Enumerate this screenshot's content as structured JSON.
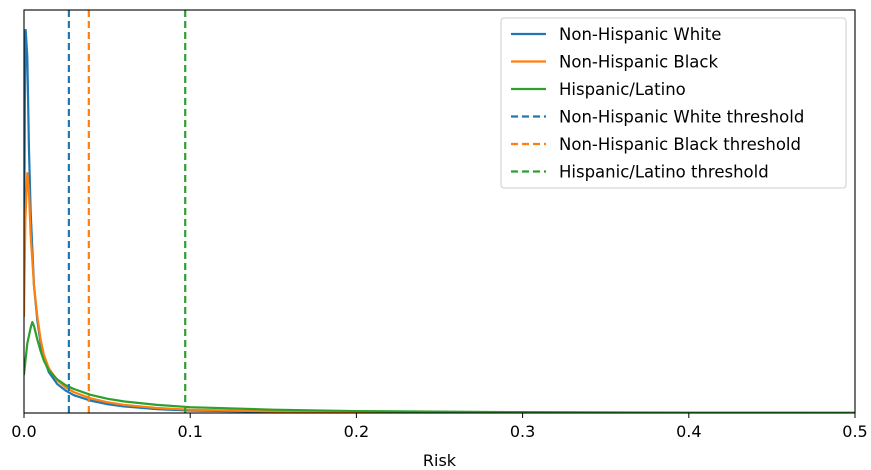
{
  "chart_data": {
    "type": "line",
    "title": "",
    "xlabel": "Risk",
    "ylabel": "",
    "xlim": [
      0,
      0.5
    ],
    "ylim": [
      0,
      1
    ],
    "grid": false,
    "legend_position": "top-right",
    "x_ticks": [
      {
        "value": 0.0,
        "label": "0.0"
      },
      {
        "value": 0.1,
        "label": "0.1"
      },
      {
        "value": 0.2,
        "label": "0.2"
      },
      {
        "value": 0.3,
        "label": "0.3"
      },
      {
        "value": 0.4,
        "label": "0.4"
      },
      {
        "value": 0.5,
        "label": "0.5"
      }
    ],
    "series": [
      {
        "name": "Non-Hispanic White",
        "color": "#1f77b4",
        "style": "solid",
        "points": [
          [
            0,
            0.3
          ],
          [
            0.0005,
            0.8
          ],
          [
            0.001,
            0.99
          ],
          [
            0.002,
            0.92
          ],
          [
            0.003,
            0.68
          ],
          [
            0.004,
            0.52
          ],
          [
            0.006,
            0.33
          ],
          [
            0.008,
            0.24
          ],
          [
            0.01,
            0.18
          ],
          [
            0.012,
            0.14
          ],
          [
            0.015,
            0.105
          ],
          [
            0.02,
            0.075
          ],
          [
            0.025,
            0.058
          ],
          [
            0.03,
            0.046
          ],
          [
            0.04,
            0.032
          ],
          [
            0.05,
            0.023
          ],
          [
            0.06,
            0.017
          ],
          [
            0.08,
            0.01
          ],
          [
            0.1,
            0.0065
          ],
          [
            0.15,
            0.003
          ],
          [
            0.2,
            0.0015
          ],
          [
            0.3,
            0.0005
          ],
          [
            0.5,
            0.0001
          ]
        ]
      },
      {
        "name": "Non-Hispanic Black",
        "color": "#ff7f0e",
        "style": "solid",
        "points": [
          [
            0,
            0.25
          ],
          [
            0.0008,
            0.5
          ],
          [
            0.002,
            0.62
          ],
          [
            0.003,
            0.57
          ],
          [
            0.004,
            0.46
          ],
          [
            0.006,
            0.33
          ],
          [
            0.008,
            0.25
          ],
          [
            0.01,
            0.19
          ],
          [
            0.012,
            0.15
          ],
          [
            0.015,
            0.115
          ],
          [
            0.02,
            0.085
          ],
          [
            0.025,
            0.066
          ],
          [
            0.03,
            0.054
          ],
          [
            0.04,
            0.038
          ],
          [
            0.05,
            0.028
          ],
          [
            0.06,
            0.021
          ],
          [
            0.08,
            0.013
          ],
          [
            0.1,
            0.0085
          ],
          [
            0.15,
            0.004
          ],
          [
            0.2,
            0.002
          ],
          [
            0.3,
            0.0007
          ],
          [
            0.5,
            0.0002
          ]
        ]
      },
      {
        "name": "Hispanic/Latino",
        "color": "#2ca02c",
        "style": "solid",
        "points": [
          [
            0,
            0.1
          ],
          [
            0.002,
            0.18
          ],
          [
            0.004,
            0.22
          ],
          [
            0.005,
            0.235
          ],
          [
            0.006,
            0.225
          ],
          [
            0.008,
            0.19
          ],
          [
            0.01,
            0.16
          ],
          [
            0.012,
            0.135
          ],
          [
            0.015,
            0.11
          ],
          [
            0.02,
            0.087
          ],
          [
            0.025,
            0.072
          ],
          [
            0.03,
            0.062
          ],
          [
            0.04,
            0.047
          ],
          [
            0.05,
            0.037
          ],
          [
            0.06,
            0.03
          ],
          [
            0.08,
            0.021
          ],
          [
            0.1,
            0.015
          ],
          [
            0.15,
            0.0085
          ],
          [
            0.2,
            0.005
          ],
          [
            0.3,
            0.0022
          ],
          [
            0.4,
            0.0011
          ],
          [
            0.5,
            0.0006
          ]
        ]
      }
    ],
    "thresholds": [
      {
        "name": "Non-Hispanic White threshold",
        "x": 0.027,
        "color": "#1f77b4",
        "style": "dashed"
      },
      {
        "name": "Non-Hispanic Black threshold",
        "x": 0.039,
        "color": "#ff7f0e",
        "style": "dashed"
      },
      {
        "name": "Hispanic/Latino threshold",
        "x": 0.097,
        "color": "#2ca02c",
        "style": "dashed"
      }
    ]
  }
}
